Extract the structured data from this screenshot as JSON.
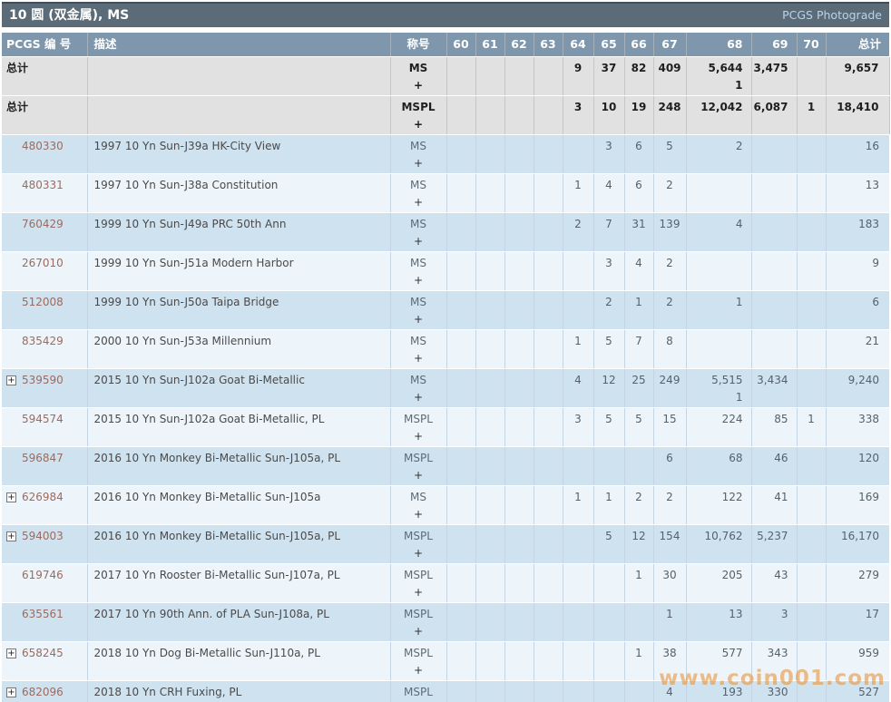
{
  "title_bar": {
    "title": "10 圆 (双金属), MS",
    "photograde_link": "PCGS Photograde"
  },
  "columns": {
    "pcgs": "PCGS 编 号",
    "desc": "描述",
    "designation": "称号",
    "g60": "60",
    "g61": "61",
    "g62": "62",
    "g63": "63",
    "g64": "64",
    "g65": "65",
    "g66": "66",
    "g67": "67",
    "g68": "68",
    "g69": "69",
    "g70": "70",
    "total": "总计"
  },
  "plus_label": "+",
  "rows": [
    {
      "type": "total",
      "label": "总计",
      "designation": "MS",
      "values": {
        "64": "9",
        "65": "37",
        "66": "82",
        "67": "409",
        "68": "5,644",
        "69": "3,475",
        "total": "9,657"
      },
      "plus": {
        "68": "1"
      }
    },
    {
      "type": "total",
      "label": "总计",
      "designation": "MSPL",
      "values": {
        "64": "3",
        "65": "10",
        "66": "19",
        "67": "248",
        "68": "12,042",
        "69": "6,087",
        "70": "1",
        "total": "18,410"
      }
    },
    {
      "type": "data",
      "pcgs": "480330",
      "expandable": false,
      "desc": "1997 10 Yn Sun-J39a HK-City View",
      "designation": "MS",
      "values": {
        "65": "3",
        "66": "6",
        "67": "5",
        "68": "2",
        "total": "16"
      }
    },
    {
      "type": "data",
      "pcgs": "480331",
      "expandable": false,
      "desc": "1997 10 Yn Sun-J38a Constitution",
      "designation": "MS",
      "values": {
        "64": "1",
        "65": "4",
        "66": "6",
        "67": "2",
        "total": "13"
      }
    },
    {
      "type": "data",
      "pcgs": "760429",
      "expandable": false,
      "desc": "1999 10 Yn Sun-J49a PRC 50th Ann",
      "designation": "MS",
      "values": {
        "64": "2",
        "65": "7",
        "66": "31",
        "67": "139",
        "68": "4",
        "total": "183"
      }
    },
    {
      "type": "data",
      "pcgs": "267010",
      "expandable": false,
      "desc": "1999 10 Yn Sun-J51a Modern Harbor",
      "designation": "MS",
      "values": {
        "65": "3",
        "66": "4",
        "67": "2",
        "total": "9"
      }
    },
    {
      "type": "data",
      "pcgs": "512008",
      "expandable": false,
      "desc": "1999 10 Yn Sun-J50a Taipa Bridge",
      "designation": "MS",
      "values": {
        "65": "2",
        "66": "1",
        "67": "2",
        "68": "1",
        "total": "6"
      }
    },
    {
      "type": "data",
      "pcgs": "835429",
      "expandable": false,
      "desc": "2000 10 Yn Sun-J53a Millennium",
      "designation": "MS",
      "values": {
        "64": "1",
        "65": "5",
        "66": "7",
        "67": "8",
        "total": "21"
      }
    },
    {
      "type": "data",
      "pcgs": "539590",
      "expandable": true,
      "desc": "2015 10 Yn Sun-J102a Goat Bi-Metallic",
      "designation": "MS",
      "values": {
        "64": "4",
        "65": "12",
        "66": "25",
        "67": "249",
        "68": "5,515",
        "69": "3,434",
        "total": "9,240"
      },
      "plus": {
        "68": "1"
      }
    },
    {
      "type": "data",
      "pcgs": "594574",
      "expandable": false,
      "desc": "2015 10 Yn Sun-J102a Goat Bi-Metallic, PL",
      "designation": "MSPL",
      "values": {
        "64": "3",
        "65": "5",
        "66": "5",
        "67": "15",
        "68": "224",
        "69": "85",
        "70": "1",
        "total": "338"
      }
    },
    {
      "type": "data",
      "pcgs": "596847",
      "expandable": false,
      "desc": "2016 10 Yn Monkey Bi-Metallic Sun-J105a, PL",
      "designation": "MSPL",
      "values": {
        "67": "6",
        "68": "68",
        "69": "46",
        "total": "120"
      }
    },
    {
      "type": "data",
      "pcgs": "626984",
      "expandable": true,
      "desc": "2016 10 Yn Monkey Bi-Metallic Sun-J105a",
      "designation": "MS",
      "values": {
        "64": "1",
        "65": "1",
        "66": "2",
        "67": "2",
        "68": "122",
        "69": "41",
        "total": "169"
      }
    },
    {
      "type": "data",
      "pcgs": "594003",
      "expandable": true,
      "desc": "2016 10 Yn Monkey Bi-Metallic Sun-J105a, PL",
      "designation": "MSPL",
      "values": {
        "65": "5",
        "66": "12",
        "67": "154",
        "68": "10,762",
        "69": "5,237",
        "total": "16,170"
      }
    },
    {
      "type": "data",
      "pcgs": "619746",
      "expandable": false,
      "desc": "2017 10 Yn Rooster Bi-Metallic Sun-J107a, PL",
      "designation": "MSPL",
      "values": {
        "66": "1",
        "67": "30",
        "68": "205",
        "69": "43",
        "total": "279"
      }
    },
    {
      "type": "data",
      "pcgs": "635561",
      "expandable": false,
      "desc": "2017 10 Yn 90th Ann. of PLA Sun-J108a, PL",
      "designation": "MSPL",
      "values": {
        "67": "1",
        "68": "13",
        "69": "3",
        "total": "17"
      }
    },
    {
      "type": "data",
      "pcgs": "658245",
      "expandable": true,
      "desc": "2018 10 Yn Dog Bi-Metallic Sun-J110a, PL",
      "designation": "MSPL",
      "values": {
        "66": "1",
        "67": "38",
        "68": "577",
        "69": "343",
        "total": "959"
      }
    },
    {
      "type": "data",
      "pcgs": "682096",
      "expandable": true,
      "desc": "2018 10 Yn CRH Fuxing, PL",
      "designation": "MSPL",
      "values": {
        "67": "4",
        "68": "193",
        "69": "330",
        "total": "527"
      }
    }
  ],
  "watermark": "www.coin001.com",
  "colors": {
    "title_bar": "#5b6b77",
    "header": "#7e97ad",
    "row_blue": "#cfe2f0",
    "row_light": "#eef5fa",
    "row_total": "#e1e1e1",
    "pcgs_link": "#9c6b5f",
    "photograde_link": "#b9d3e8",
    "watermark": "#e8963c"
  }
}
